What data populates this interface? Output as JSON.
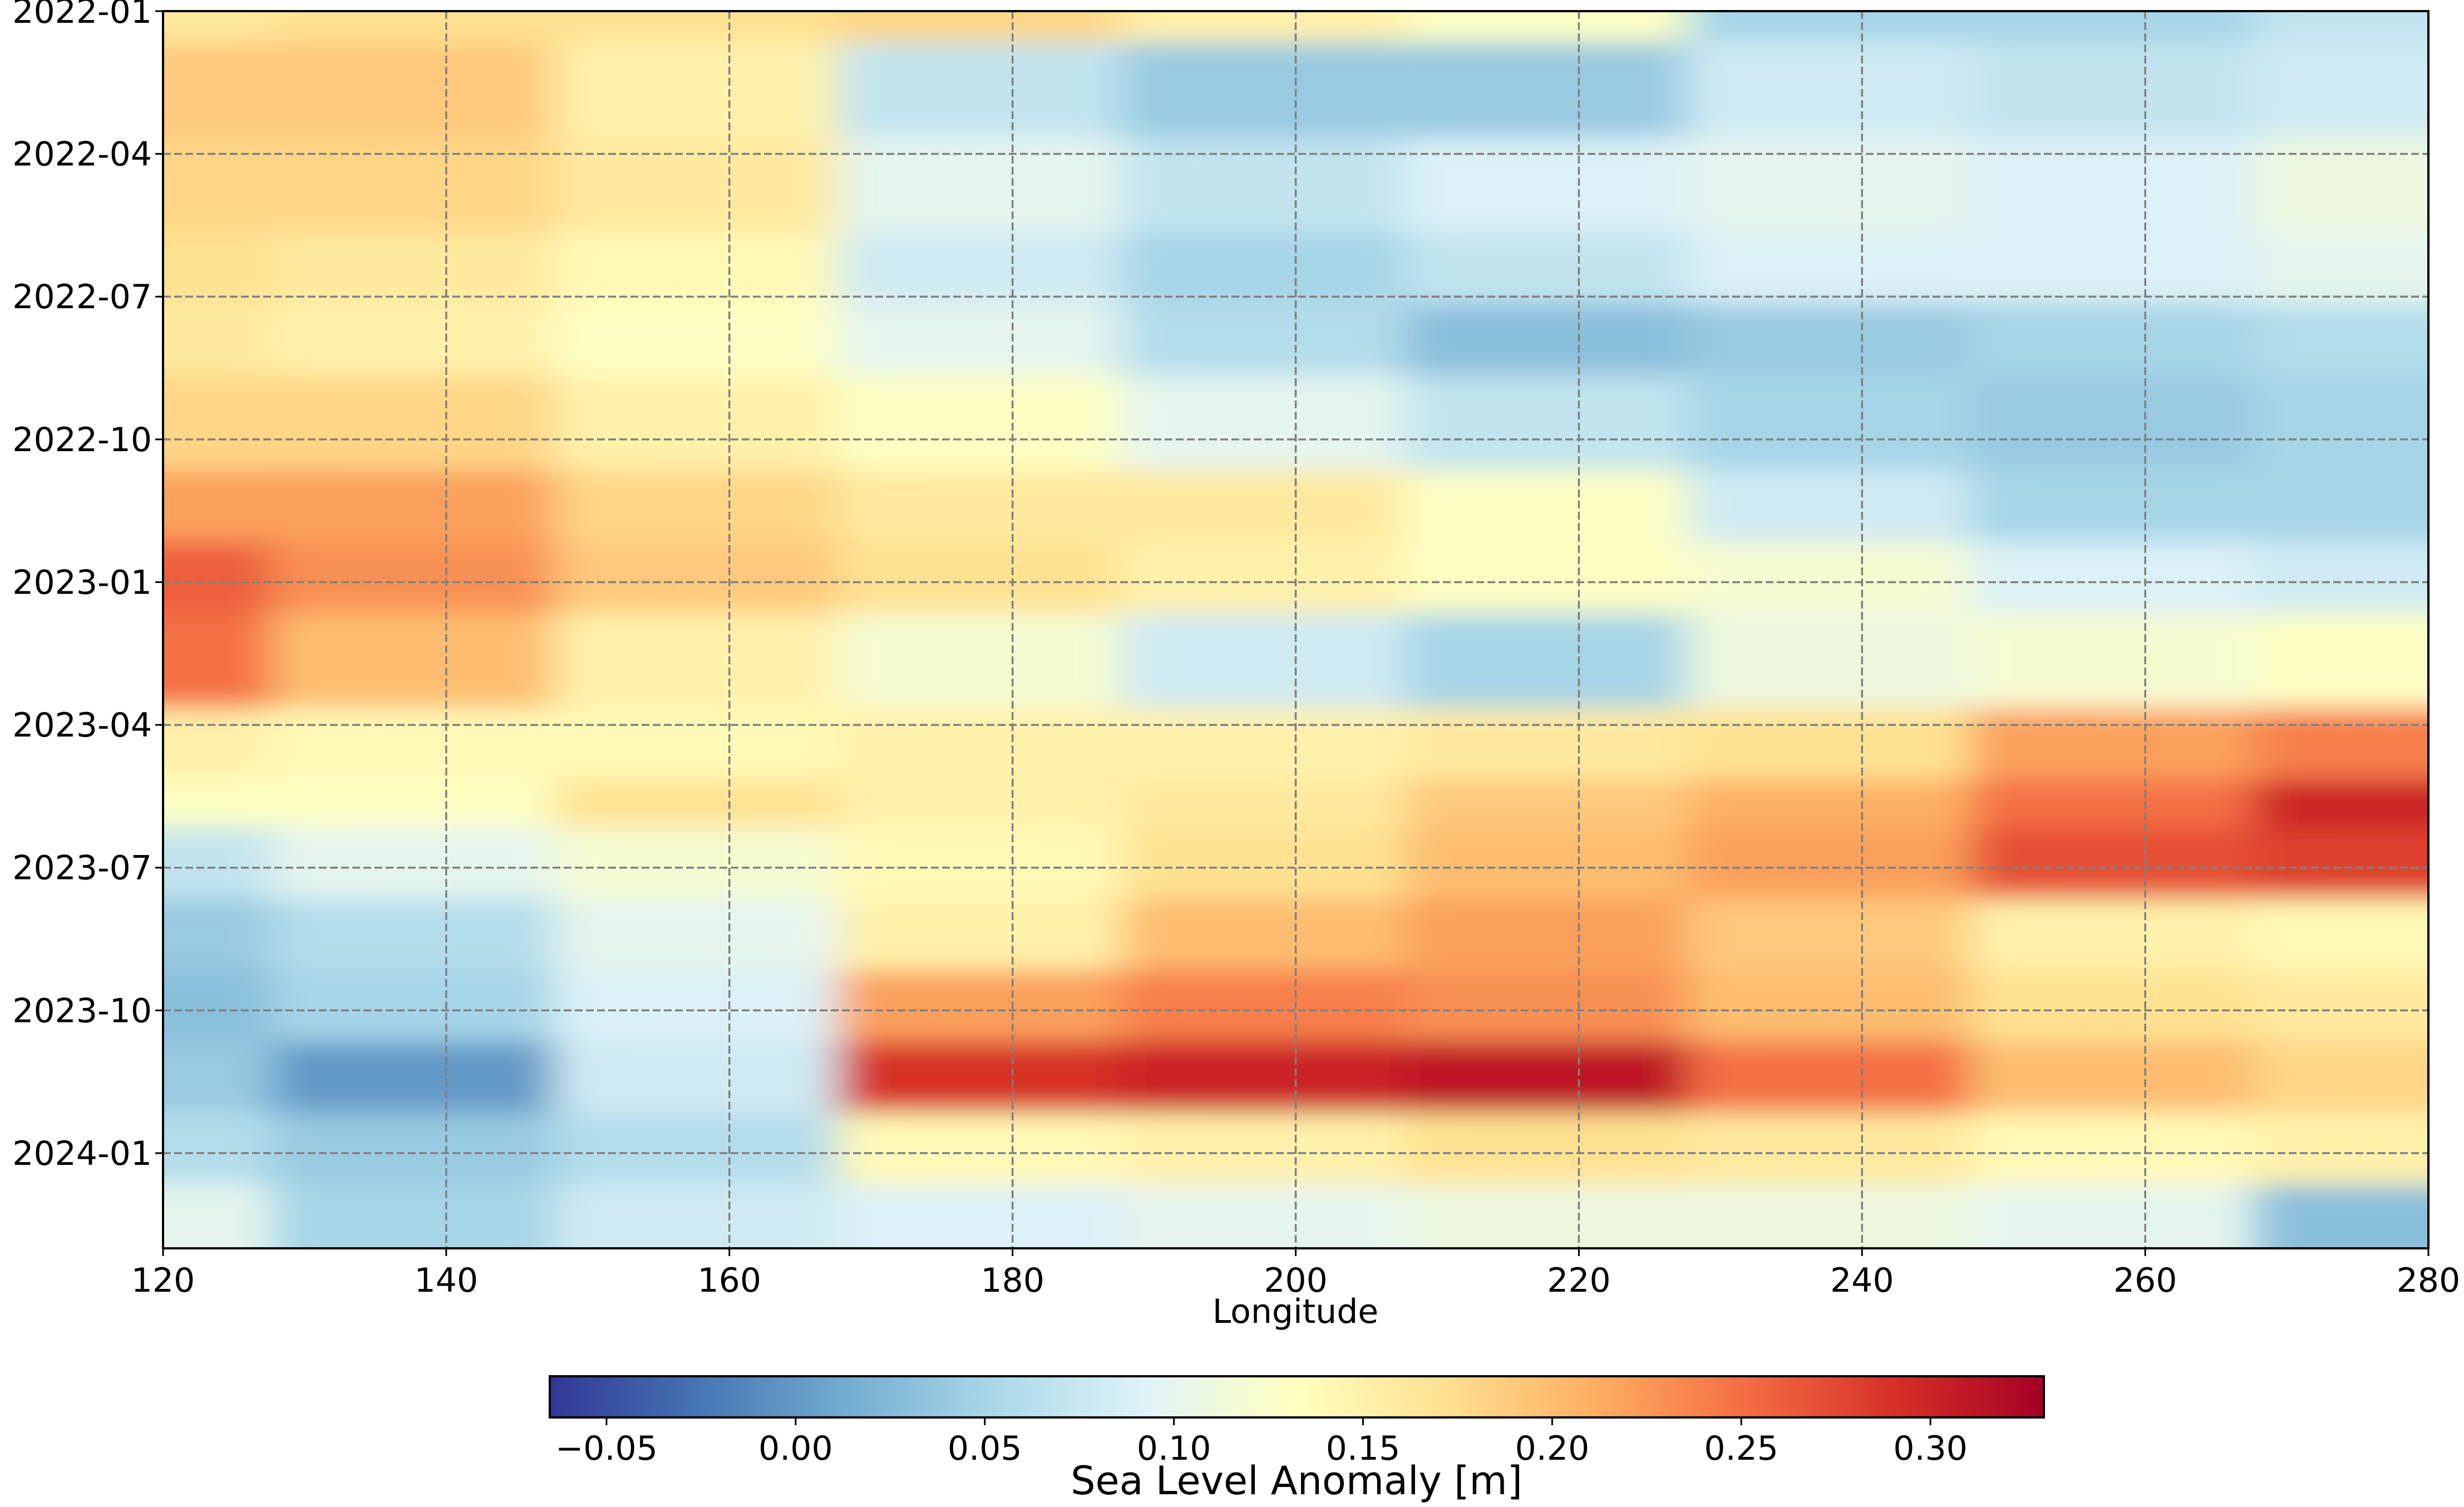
{
  "chart_data": {
    "type": "heatmap",
    "title": "",
    "xlabel": "Longitude",
    "ylabel": "",
    "xlim": [
      120,
      280
    ],
    "ylim": [
      "2022-01",
      "2024-03"
    ],
    "y_axis": "time, earliest at top",
    "x_ticks": [
      "120",
      "140",
      "160",
      "180",
      "200",
      "220",
      "240",
      "260",
      "280"
    ],
    "y_ticks": [
      "2022-01",
      "2022-04",
      "2022-07",
      "2022-10",
      "2023-01",
      "2023-04",
      "2023-07",
      "2023-10",
      "2024-01"
    ],
    "grid": true,
    "grid_style": "dashed gray",
    "x": [
      120,
      140,
      160,
      180,
      200,
      220,
      240,
      260,
      280
    ],
    "y": [
      "2022-01",
      "2022-03",
      "2022-05",
      "2022-07",
      "2022-08",
      "2022-10",
      "2022-12",
      "2023-01",
      "2023-03",
      "2023-05",
      "2023-06",
      "2023-07",
      "2023-09",
      "2023-10",
      "2023-12",
      "2024-01",
      "2024-03"
    ],
    "z": [
      [
        0.16,
        0.17,
        0.17,
        0.18,
        0.15,
        0.13,
        0.05,
        0.05,
        0.07
      ],
      [
        0.19,
        0.19,
        0.15,
        0.07,
        0.04,
        0.04,
        0.08,
        0.07,
        0.08
      ],
      [
        0.18,
        0.18,
        0.16,
        0.1,
        0.07,
        0.09,
        0.1,
        0.09,
        0.11
      ],
      [
        0.17,
        0.16,
        0.14,
        0.08,
        0.05,
        0.07,
        0.09,
        0.09,
        0.1
      ],
      [
        0.16,
        0.15,
        0.13,
        0.1,
        0.06,
        0.03,
        0.04,
        0.05,
        0.06
      ],
      [
        0.18,
        0.18,
        0.15,
        0.13,
        0.1,
        0.07,
        0.05,
        0.04,
        0.05
      ],
      [
        0.22,
        0.22,
        0.18,
        0.16,
        0.16,
        0.13,
        0.08,
        0.05,
        0.05
      ],
      [
        0.26,
        0.23,
        0.19,
        0.17,
        0.15,
        0.13,
        0.12,
        0.09,
        0.08
      ],
      [
        0.25,
        0.2,
        0.15,
        0.12,
        0.08,
        0.05,
        0.11,
        0.12,
        0.13
      ],
      [
        0.15,
        0.14,
        0.14,
        0.15,
        0.15,
        0.16,
        0.17,
        0.22,
        0.24
      ],
      [
        0.13,
        0.13,
        0.17,
        0.15,
        0.16,
        0.19,
        0.21,
        0.25,
        0.3
      ],
      [
        0.07,
        0.1,
        0.12,
        0.14,
        0.17,
        0.2,
        0.22,
        0.27,
        0.28
      ],
      [
        0.04,
        0.06,
        0.1,
        0.15,
        0.2,
        0.22,
        0.19,
        0.15,
        0.14
      ],
      [
        0.03,
        0.05,
        0.09,
        0.22,
        0.24,
        0.23,
        0.2,
        0.17,
        0.16
      ],
      [
        0.04,
        0.0,
        0.08,
        0.29,
        0.3,
        0.31,
        0.25,
        0.2,
        0.18
      ],
      [
        0.06,
        0.04,
        0.06,
        0.14,
        0.15,
        0.17,
        0.16,
        0.14,
        0.15
      ],
      [
        0.1,
        0.05,
        0.08,
        0.09,
        0.1,
        0.11,
        0.11,
        0.1,
        0.03
      ]
    ],
    "colorbar": {
      "label": "Sea Level Anomaly [m]",
      "ticks": [
        "−0.05",
        "0.00",
        "0.05",
        "0.10",
        "0.15",
        "0.20",
        "0.25",
        "0.30"
      ],
      "tick_values": [
        -0.05,
        0.0,
        0.05,
        0.1,
        0.15,
        0.2,
        0.25,
        0.3
      ],
      "range": [
        -0.065,
        0.33
      ],
      "colormap": "RdYlBu_r",
      "colors": [
        "#313695",
        "#4575b4",
        "#74add1",
        "#abd9e9",
        "#e0f3f8",
        "#ffffbf",
        "#fee090",
        "#fdae61",
        "#f46d43",
        "#d73027",
        "#a50026"
      ],
      "orientation": "horizontal",
      "placement": "below"
    }
  }
}
